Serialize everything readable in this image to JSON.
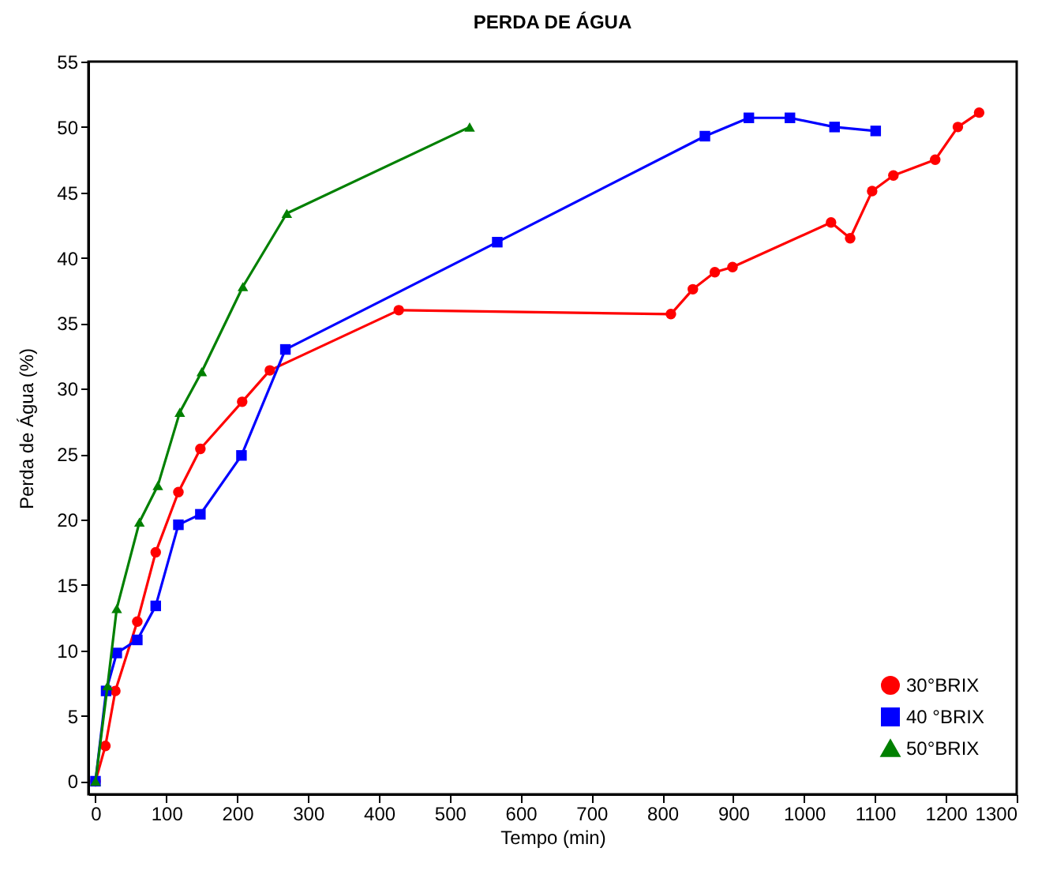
{
  "chart_data": {
    "type": "line",
    "title": "PERDA DE ÁGUA",
    "xlabel": "Tempo (min)",
    "ylabel": "Perda de Água (%)",
    "xlim": [
      -10,
      1300
    ],
    "xticks": [
      0,
      100,
      200,
      300,
      400,
      500,
      600,
      700,
      800,
      900,
      1000,
      1100,
      1200,
      1300
    ],
    "ylim": [
      -1,
      55
    ],
    "yticks": [
      0,
      5,
      10,
      15,
      20,
      25,
      30,
      35,
      40,
      45,
      50,
      55
    ],
    "grid": false,
    "legend": "bottom right",
    "series": [
      {
        "name": "30°BRIX",
        "color": "#ff0000",
        "marker": "circle",
        "x": [
          0,
          14,
          28,
          59,
          85,
          117,
          148,
          207,
          246,
          428,
          812,
          843,
          874,
          899,
          1038,
          1065,
          1096,
          1126,
          1185,
          1217,
          1247
        ],
        "values": [
          0,
          2.7,
          6.9,
          12.2,
          17.5,
          22.1,
          25.4,
          29.0,
          31.4,
          36.0,
          35.7,
          37.6,
          38.9,
          39.3,
          42.7,
          41.5,
          45.1,
          46.3,
          47.5,
          50.0,
          51.1
        ]
      },
      {
        "name": "40 °BRIX",
        "color": "#0000ff",
        "marker": "square",
        "x": [
          0,
          15,
          30,
          59,
          85,
          117,
          148,
          206,
          268,
          567,
          860,
          922,
          980,
          1043,
          1101
        ],
        "values": [
          0,
          6.9,
          9.8,
          10.8,
          13.4,
          19.6,
          20.4,
          24.9,
          33.0,
          41.2,
          49.3,
          50.7,
          50.7,
          50.0,
          49.7
        ]
      },
      {
        "name": "50°BRIX",
        "color": "#008000",
        "marker": "triangle",
        "x": [
          0,
          17,
          30,
          62,
          88,
          119,
          150,
          208,
          270,
          528
        ],
        "values": [
          0,
          7.3,
          13.2,
          19.8,
          22.6,
          28.2,
          31.3,
          37.8,
          43.4,
          50.0
        ]
      }
    ]
  }
}
